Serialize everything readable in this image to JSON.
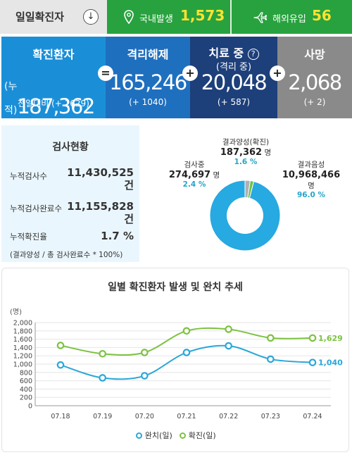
{
  "top": {
    "daily_label": "일일확진자",
    "down_glyph": "↓",
    "domestic_label": "국내발생",
    "domestic_value": "1,573",
    "overseas_label": "해외유입",
    "overseas_value": "56"
  },
  "status": {
    "confirmed": {
      "title": "확진환자",
      "prefix": "(누적)",
      "value": "187,362",
      "change": "전일대비 (+ 1629)",
      "color": "#1a8fd8"
    },
    "released": {
      "title": "격리해제",
      "value": "165,246",
      "change": "(+ 1040)",
      "color": "#1f6fbf"
    },
    "treating": {
      "title": "치료 중",
      "help": "?",
      "sub": "(격리 중)",
      "value": "20,048",
      "change": "(+ 587)",
      "color": "#1d3f7a"
    },
    "death": {
      "title": "사망",
      "value": "2,068",
      "change": "(+ 2)",
      "color": "#8a8a8a"
    },
    "ops": [
      "=",
      "+",
      "+"
    ]
  },
  "tests": {
    "title": "검사현황",
    "rows": [
      {
        "label": "누적검사수",
        "value": "11,430,525",
        "unit": "건"
      },
      {
        "label": "누적검사완료수",
        "value": "11,155,828",
        "unit": "건"
      },
      {
        "label": "누적확진율",
        "value": "1.7 %"
      }
    ],
    "note": "(결과양성 / 총 검사완료수 * 100%)"
  },
  "donut": {
    "positive": {
      "label": "결과양성(확진)",
      "value": "187,362",
      "unit": "명",
      "pct": "1.6 %"
    },
    "testing": {
      "label": "검사중",
      "value": "274,697",
      "unit": "명",
      "pct": "2.4 %"
    },
    "negative": {
      "label": "결과음성",
      "value": "10,968,466",
      "unit": "명",
      "pct": "96.0 %"
    },
    "colors": {
      "negative": "#27a9e1",
      "testing": "#b0b0b0",
      "positive": "#6cc24a"
    },
    "shares": [
      96.0,
      2.4,
      1.6
    ]
  },
  "chart_data": {
    "type": "line",
    "title": "일별 확진환자 발생 및 완치 추세",
    "ylabel": "(명)",
    "categories": [
      "07.18",
      "07.19",
      "07.20",
      "07.21",
      "07.22",
      "07.23",
      "07.24"
    ],
    "ylim": [
      0,
      2000
    ],
    "yticks": [
      0,
      200,
      400,
      600,
      800,
      1000,
      1200,
      1400,
      1600,
      1800,
      2000
    ],
    "ytick_labels": [
      "0",
      "200",
      "400",
      "600",
      "800",
      "1,000",
      "1,200",
      "1,400",
      "1,600",
      "1,800",
      "2,000"
    ],
    "grid": true,
    "legend": "bottom",
    "series": [
      {
        "name": "완치(일)",
        "color": "#2aa7d8",
        "values": [
          980,
          670,
          720,
          1280,
          1440,
          1120,
          1040
        ],
        "end_label": "1,040"
      },
      {
        "name": "확진(일)",
        "color": "#7cc242",
        "values": [
          1450,
          1250,
          1280,
          1800,
          1840,
          1630,
          1629
        ],
        "end_label": "1,629"
      }
    ]
  }
}
